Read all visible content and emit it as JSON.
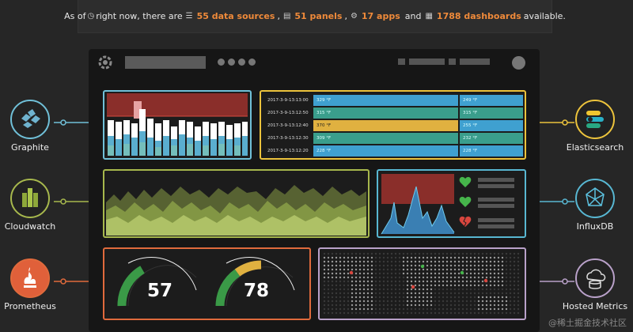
{
  "banner": {
    "prefix": "As of",
    "time_text": "right now, there are",
    "sources": "55 data sources",
    "sep1": ",",
    "panels": "51 panels",
    "sep2": ",",
    "apps": "17 apps",
    "and": "and",
    "dashboards": "1788 dashboards",
    "suffix": "available."
  },
  "datasources": {
    "graphite": "Graphite",
    "cloudwatch": "Cloudwatch",
    "prometheus": "Prometheus",
    "elasticsearch": "Elasticsearch",
    "influxdb": "InfluxDB",
    "hosted": "Hosted Metrics"
  },
  "table": {
    "rows": [
      {
        "ts": "2017-3-9-13:13:00",
        "v1": "329 °F",
        "v2": "249 °F",
        "c1": "bl",
        "c2": "bl"
      },
      {
        "ts": "2017-3-9-13:12:50",
        "v1": "315 °F",
        "v2": "315 °F",
        "c1": "tl",
        "c2": "tl"
      },
      {
        "ts": "2017-3-9-13:12:40",
        "v1": "370 °F",
        "v2": "255 °F",
        "c1": "yl",
        "c2": "bl"
      },
      {
        "ts": "2017-3-9-13:12:30",
        "v1": "309 °F",
        "v2": "232 °F",
        "c1": "tl",
        "c2": "tl"
      },
      {
        "ts": "2017-3-9-13:12:20",
        "v1": "228 °F",
        "v2": "228 °F",
        "c1": "bl",
        "c2": "bl"
      }
    ]
  },
  "gauges": {
    "g1": "57",
    "g2": "78"
  },
  "watermark": "@稀土掘金技术社区",
  "colors": {
    "accent": "#ef8a3a",
    "graphite": "#70c0d8",
    "elastic": "#ecc33c",
    "cloud": "#a7b84d",
    "influx": "#58b7d2",
    "prom": "#e06a3c",
    "hosted": "#b9a1c9"
  }
}
